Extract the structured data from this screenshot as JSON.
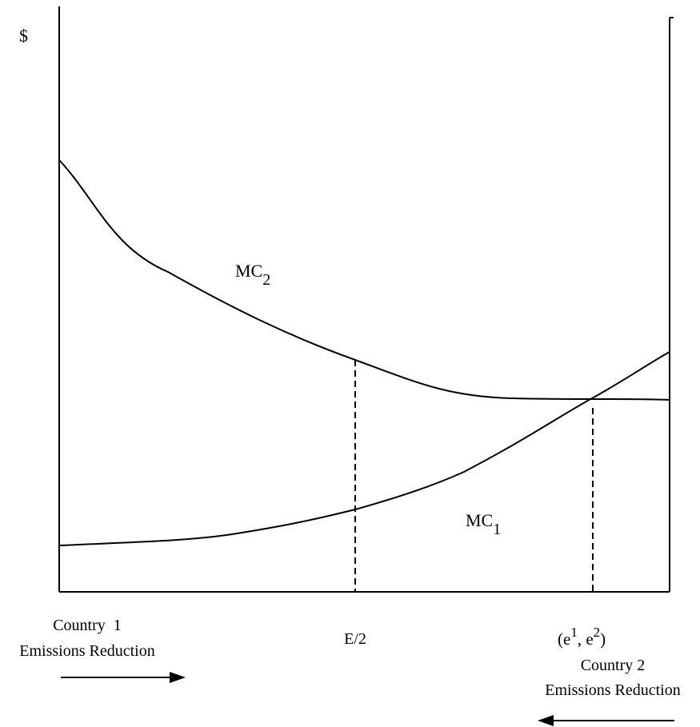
{
  "diagram": {
    "y_axis_symbol": "$",
    "curves": {
      "mc2": {
        "base": "MC",
        "subscript": "2"
      },
      "mc1": {
        "base": "MC",
        "subscript": "1"
      }
    },
    "markers": {
      "half": {
        "label": "E/2"
      },
      "equilibrium": {
        "open": "(e",
        "sup1": "1",
        "mid": ", e",
        "sup2": "2",
        "close": ")"
      }
    },
    "country1": {
      "line1": "Country  1",
      "line2": "Emissions Reduction",
      "arrow_direction": "right"
    },
    "country2": {
      "line1": "Country 2",
      "line2": "Emissions Reduction",
      "arrow_direction": "left"
    },
    "line_color": "#000000"
  }
}
